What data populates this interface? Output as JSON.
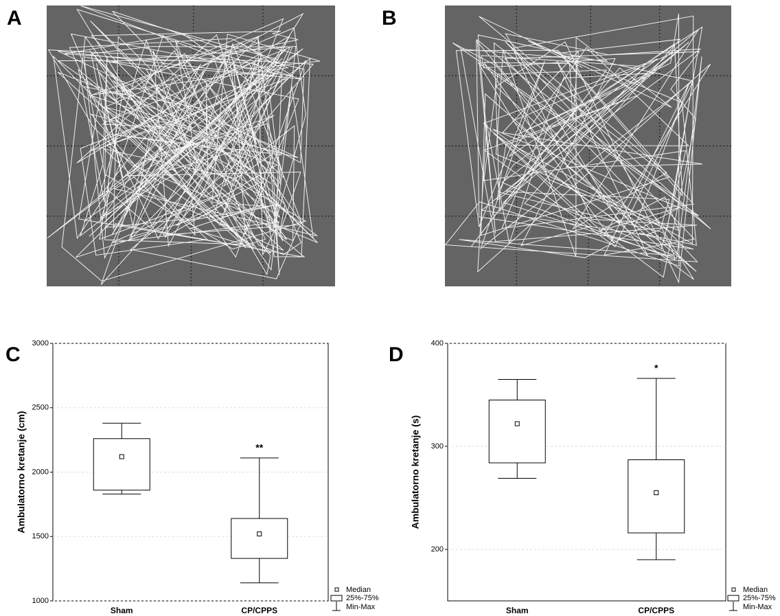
{
  "panels": [
    {
      "label": "A"
    },
    {
      "label": "B"
    }
  ],
  "chart_data": [
    {
      "type": "box",
      "panel_label": "C",
      "ylabel": "Ambulatorno kretanje (cm)",
      "categories": [
        "Sham",
        "CP/CPPS"
      ],
      "boxes": [
        {
          "min": 1830,
          "q1": 1860,
          "median": 2120,
          "q3": 2260,
          "max": 2380
        },
        {
          "min": 1140,
          "q1": 1330,
          "median": 1520,
          "q3": 1640,
          "max": 2110,
          "annotation": "**"
        }
      ],
      "ylim": [
        1000,
        3000
      ],
      "yticks": [
        1000,
        1500,
        2000,
        2500,
        3000
      ],
      "grid": true,
      "legend": [
        "Median",
        "25%-75%",
        "Min-Max"
      ]
    },
    {
      "type": "box",
      "panel_label": "D",
      "ylabel": "Ambulatorno kretanje  (s)",
      "categories": [
        "Sham",
        "CP/CPPS"
      ],
      "boxes": [
        {
          "min": 269,
          "q1": 284,
          "median": 322,
          "q3": 345,
          "max": 365
        },
        {
          "min": 190,
          "q1": 216,
          "median": 255,
          "q3": 287,
          "max": 366,
          "annotation": "*"
        }
      ],
      "ylim": [
        150,
        400
      ],
      "yticks": [
        200,
        300,
        400
      ],
      "grid": true,
      "legend": [
        "Median",
        "25%-75%",
        "Min-Max"
      ]
    }
  ]
}
